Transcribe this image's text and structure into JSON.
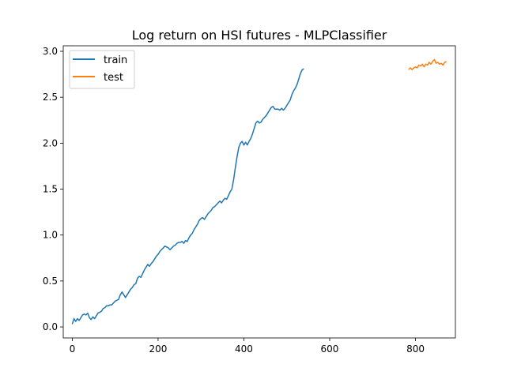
{
  "chart_data": {
    "type": "line",
    "title": "Log return on HSI futures - MLPClassifier",
    "xlabel": "",
    "ylabel": "",
    "xlim": [
      -21,
      893
    ],
    "ylim": [
      -0.12,
      3.06
    ],
    "xticks": [
      0,
      200,
      400,
      600,
      800
    ],
    "yticks": [
      0.0,
      0.5,
      1.0,
      1.5,
      2.0,
      2.5,
      3.0
    ],
    "xtick_labels": [
      "0",
      "200",
      "400",
      "600",
      "800"
    ],
    "ytick_labels": [
      "0.0",
      "0.5",
      "1.0",
      "1.5",
      "2.0",
      "2.5",
      "3.0"
    ],
    "grid": false,
    "legend_position": "top-left",
    "series": [
      {
        "name": "train",
        "color": "#1f77b4",
        "points": [
          [
            0,
            0.03
          ],
          [
            4,
            0.09
          ],
          [
            8,
            0.06
          ],
          [
            12,
            0.09
          ],
          [
            16,
            0.07
          ],
          [
            20,
            0.1
          ],
          [
            24,
            0.13
          ],
          [
            28,
            0.14
          ],
          [
            32,
            0.13
          ],
          [
            36,
            0.15
          ],
          [
            40,
            0.1
          ],
          [
            44,
            0.08
          ],
          [
            48,
            0.11
          ],
          [
            52,
            0.09
          ],
          [
            56,
            0.12
          ],
          [
            60,
            0.15
          ],
          [
            64,
            0.16
          ],
          [
            68,
            0.17
          ],
          [
            72,
            0.2
          ],
          [
            76,
            0.21
          ],
          [
            80,
            0.23
          ],
          [
            84,
            0.23
          ],
          [
            88,
            0.24
          ],
          [
            92,
            0.24
          ],
          [
            96,
            0.26
          ],
          [
            100,
            0.28
          ],
          [
            104,
            0.29
          ],
          [
            108,
            0.3
          ],
          [
            112,
            0.35
          ],
          [
            116,
            0.38
          ],
          [
            120,
            0.35
          ],
          [
            124,
            0.32
          ],
          [
            128,
            0.35
          ],
          [
            132,
            0.38
          ],
          [
            136,
            0.41
          ],
          [
            140,
            0.43
          ],
          [
            144,
            0.46
          ],
          [
            148,
            0.47
          ],
          [
            152,
            0.53
          ],
          [
            156,
            0.55
          ],
          [
            160,
            0.54
          ],
          [
            164,
            0.58
          ],
          [
            168,
            0.62
          ],
          [
            172,
            0.65
          ],
          [
            176,
            0.68
          ],
          [
            180,
            0.66
          ],
          [
            184,
            0.69
          ],
          [
            188,
            0.71
          ],
          [
            192,
            0.74
          ],
          [
            196,
            0.77
          ],
          [
            200,
            0.79
          ],
          [
            204,
            0.82
          ],
          [
            208,
            0.84
          ],
          [
            212,
            0.86
          ],
          [
            216,
            0.88
          ],
          [
            220,
            0.87
          ],
          [
            224,
            0.86
          ],
          [
            228,
            0.84
          ],
          [
            232,
            0.86
          ],
          [
            236,
            0.88
          ],
          [
            240,
            0.89
          ],
          [
            244,
            0.91
          ],
          [
            248,
            0.92
          ],
          [
            252,
            0.92
          ],
          [
            256,
            0.93
          ],
          [
            260,
            0.91
          ],
          [
            264,
            0.94
          ],
          [
            268,
            0.93
          ],
          [
            272,
            0.97
          ],
          [
            276,
            1.0
          ],
          [
            280,
            1.02
          ],
          [
            284,
            1.06
          ],
          [
            288,
            1.09
          ],
          [
            292,
            1.12
          ],
          [
            296,
            1.16
          ],
          [
            300,
            1.18
          ],
          [
            304,
            1.19
          ],
          [
            308,
            1.17
          ],
          [
            312,
            1.2
          ],
          [
            316,
            1.23
          ],
          [
            320,
            1.25
          ],
          [
            324,
            1.27
          ],
          [
            328,
            1.3
          ],
          [
            332,
            1.31
          ],
          [
            336,
            1.33
          ],
          [
            340,
            1.35
          ],
          [
            344,
            1.37
          ],
          [
            348,
            1.35
          ],
          [
            352,
            1.38
          ],
          [
            356,
            1.4
          ],
          [
            360,
            1.39
          ],
          [
            364,
            1.43
          ],
          [
            368,
            1.47
          ],
          [
            372,
            1.5
          ],
          [
            376,
            1.6
          ],
          [
            380,
            1.73
          ],
          [
            384,
            1.85
          ],
          [
            388,
            1.95
          ],
          [
            392,
            2.0
          ],
          [
            396,
            2.02
          ],
          [
            400,
            1.98
          ],
          [
            404,
            2.01
          ],
          [
            408,
            1.98
          ],
          [
            412,
            2.02
          ],
          [
            416,
            2.05
          ],
          [
            420,
            2.1
          ],
          [
            424,
            2.16
          ],
          [
            428,
            2.22
          ],
          [
            432,
            2.24
          ],
          [
            436,
            2.22
          ],
          [
            440,
            2.23
          ],
          [
            444,
            2.26
          ],
          [
            448,
            2.28
          ],
          [
            452,
            2.3
          ],
          [
            456,
            2.33
          ],
          [
            460,
            2.36
          ],
          [
            464,
            2.39
          ],
          [
            468,
            2.4
          ],
          [
            472,
            2.37
          ],
          [
            476,
            2.37
          ],
          [
            480,
            2.37
          ],
          [
            484,
            2.36
          ],
          [
            488,
            2.38
          ],
          [
            492,
            2.36
          ],
          [
            496,
            2.38
          ],
          [
            500,
            2.41
          ],
          [
            504,
            2.44
          ],
          [
            508,
            2.47
          ],
          [
            512,
            2.53
          ],
          [
            516,
            2.57
          ],
          [
            520,
            2.6
          ],
          [
            524,
            2.64
          ],
          [
            528,
            2.7
          ],
          [
            532,
            2.76
          ],
          [
            536,
            2.8
          ],
          [
            540,
            2.81
          ]
        ]
      },
      {
        "name": "test",
        "color": "#ff7f0e",
        "points": [
          [
            784,
            2.8
          ],
          [
            788,
            2.82
          ],
          [
            792,
            2.8
          ],
          [
            796,
            2.82
          ],
          [
            800,
            2.83
          ],
          [
            804,
            2.82
          ],
          [
            808,
            2.85
          ],
          [
            812,
            2.84
          ],
          [
            816,
            2.86
          ],
          [
            820,
            2.83
          ],
          [
            824,
            2.86
          ],
          [
            828,
            2.85
          ],
          [
            832,
            2.88
          ],
          [
            836,
            2.86
          ],
          [
            840,
            2.89
          ],
          [
            844,
            2.91
          ],
          [
            848,
            2.87
          ],
          [
            852,
            2.88
          ],
          [
            856,
            2.86
          ],
          [
            860,
            2.87
          ],
          [
            864,
            2.85
          ],
          [
            868,
            2.88
          ],
          [
            872,
            2.89
          ]
        ]
      }
    ]
  }
}
